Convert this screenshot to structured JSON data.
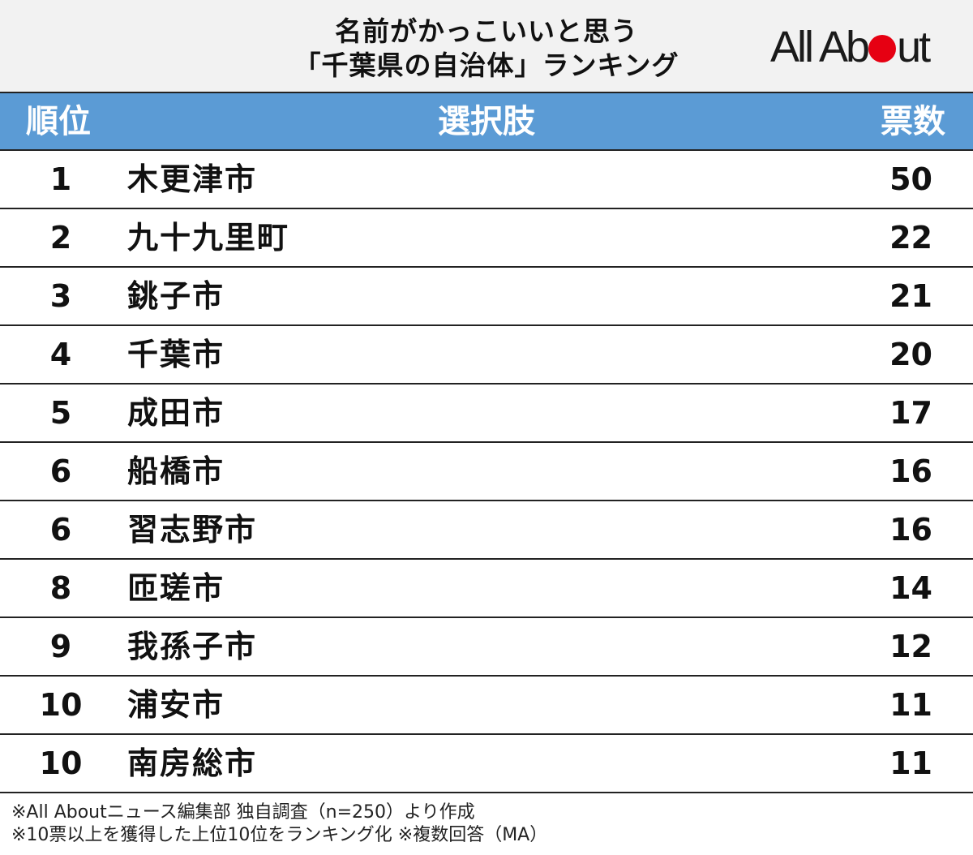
{
  "header": {
    "title_line1": "名前がかっこいいと思う",
    "title_line2": "「千葉県の自治体」ランキング",
    "logo_part1": "All Ab",
    "logo_part2": "ut",
    "logo_dot_color": "#e60012"
  },
  "table_header_color": "#5b9bd5",
  "chart_data": {
    "type": "table",
    "columns": [
      "順位",
      "選択肢",
      "票数"
    ],
    "rows": [
      {
        "rank": "1",
        "name": "木更津市",
        "votes": 50
      },
      {
        "rank": "2",
        "name": "九十九里町",
        "votes": 22
      },
      {
        "rank": "3",
        "name": "銚子市",
        "votes": 21
      },
      {
        "rank": "4",
        "name": "千葉市",
        "votes": 20
      },
      {
        "rank": "5",
        "name": "成田市",
        "votes": 17
      },
      {
        "rank": "6",
        "name": "船橋市",
        "votes": 16
      },
      {
        "rank": "6",
        "name": "習志野市",
        "votes": 16
      },
      {
        "rank": "8",
        "name": "匝瑳市",
        "votes": 14
      },
      {
        "rank": "9",
        "name": "我孫子市",
        "votes": 12
      },
      {
        "rank": "10",
        "name": "浦安市",
        "votes": 11
      },
      {
        "rank": "10",
        "name": "南房総市",
        "votes": 11
      }
    ]
  },
  "notes": {
    "line1": "※All Aboutニュース編集部 独自調査（n=250）より作成",
    "line2": "※10票以上を獲得した上位10位をランキング化 ※複数回答（MA）"
  }
}
